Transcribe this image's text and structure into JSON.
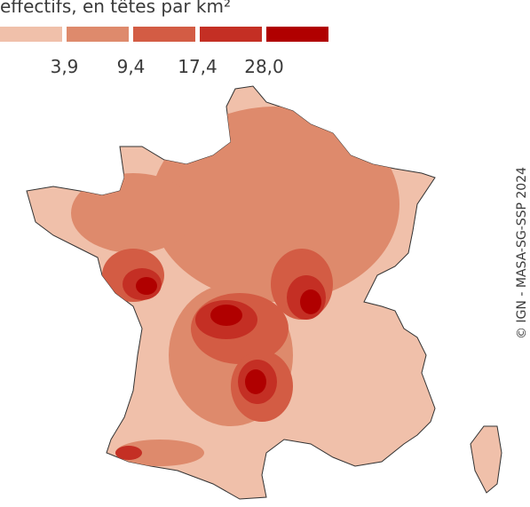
{
  "title": "effectifs, en têtes par km²",
  "legend": {
    "colors": [
      "#f0c0aa",
      "#de8a6c",
      "#d35c44",
      "#c42f24",
      "#b00000"
    ],
    "breaks": [
      {
        "value": 3.9,
        "label": "3,9"
      },
      {
        "value": 9.4,
        "label": "9,4"
      },
      {
        "value": 17.4,
        "label": "17,4"
      },
      {
        "value": 28.0,
        "label": "28,0"
      }
    ]
  },
  "credit": "© IGN - MASA-SG-SSP 2024"
}
